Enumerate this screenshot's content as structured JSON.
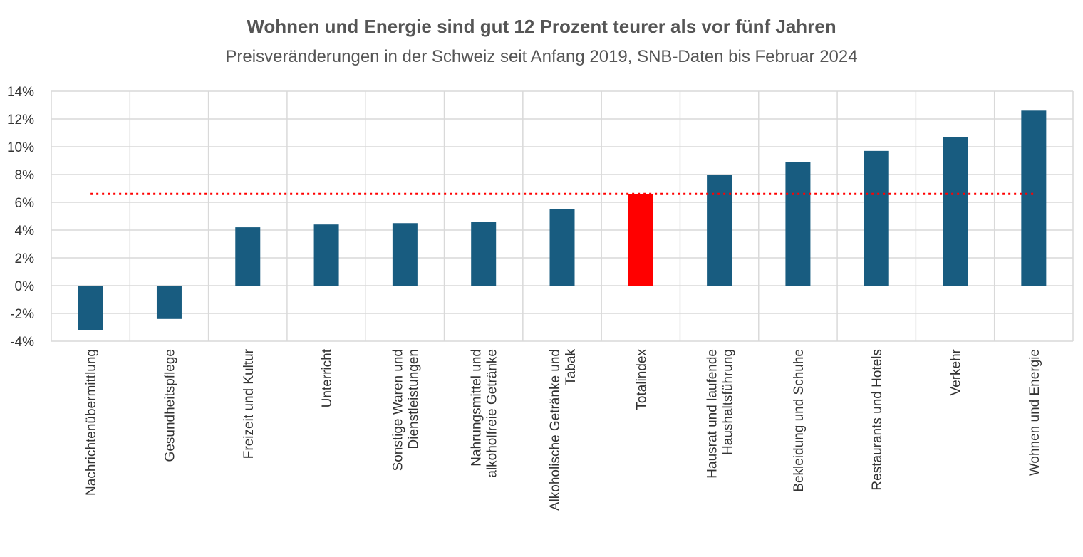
{
  "chart_data": {
    "type": "bar",
    "title": "Wohnen und Energie sind gut 12 Prozent teurer als vor fünf Jahren",
    "subtitle": "Preisveränderungen in der Schweiz seit Anfang 2019, SNB-Daten bis Februar 2024",
    "xlabel": "",
    "ylabel": "",
    "ylim": [
      -4,
      14
    ],
    "yticks": [
      "14%",
      "12%",
      "10%",
      "8%",
      "6%",
      "4%",
      "2%",
      "0%",
      "-2%",
      "-4%"
    ],
    "ytick_values": [
      14,
      12,
      10,
      8,
      6,
      4,
      2,
      0,
      -2,
      -4
    ],
    "grid": true,
    "categories": [
      [
        "Nachrichtenübermittlung"
      ],
      [
        "Gesundheitspflege"
      ],
      [
        "Freizeit und Kultur"
      ],
      [
        "Unterricht"
      ],
      [
        "Sonstige Waren und",
        "Dienstleistungen"
      ],
      [
        "Nahrungsmittel und",
        "alkoholfreie Getränke"
      ],
      [
        "Alkoholische Getränke und",
        "Tabak"
      ],
      [
        "Totalindex"
      ],
      [
        "Hausrat und laufende",
        "Haushaltsführung"
      ],
      [
        "Bekleidung und Schuhe"
      ],
      [
        "Restaurants und Hotels"
      ],
      [
        "Verkehr"
      ],
      [
        "Wohnen und Energie"
      ]
    ],
    "values": [
      -3.2,
      -2.4,
      4.2,
      4.4,
      4.5,
      4.6,
      5.5,
      6.6,
      8.0,
      8.9,
      9.7,
      10.7,
      12.6
    ],
    "highlight_index": 7,
    "reference_line": 6.6,
    "colors": {
      "bar": "#185c80",
      "highlight": "#ff0000",
      "reference": "#ff0000",
      "grid": "#d9d9d9",
      "text": "#333333",
      "title": "#555555"
    }
  }
}
